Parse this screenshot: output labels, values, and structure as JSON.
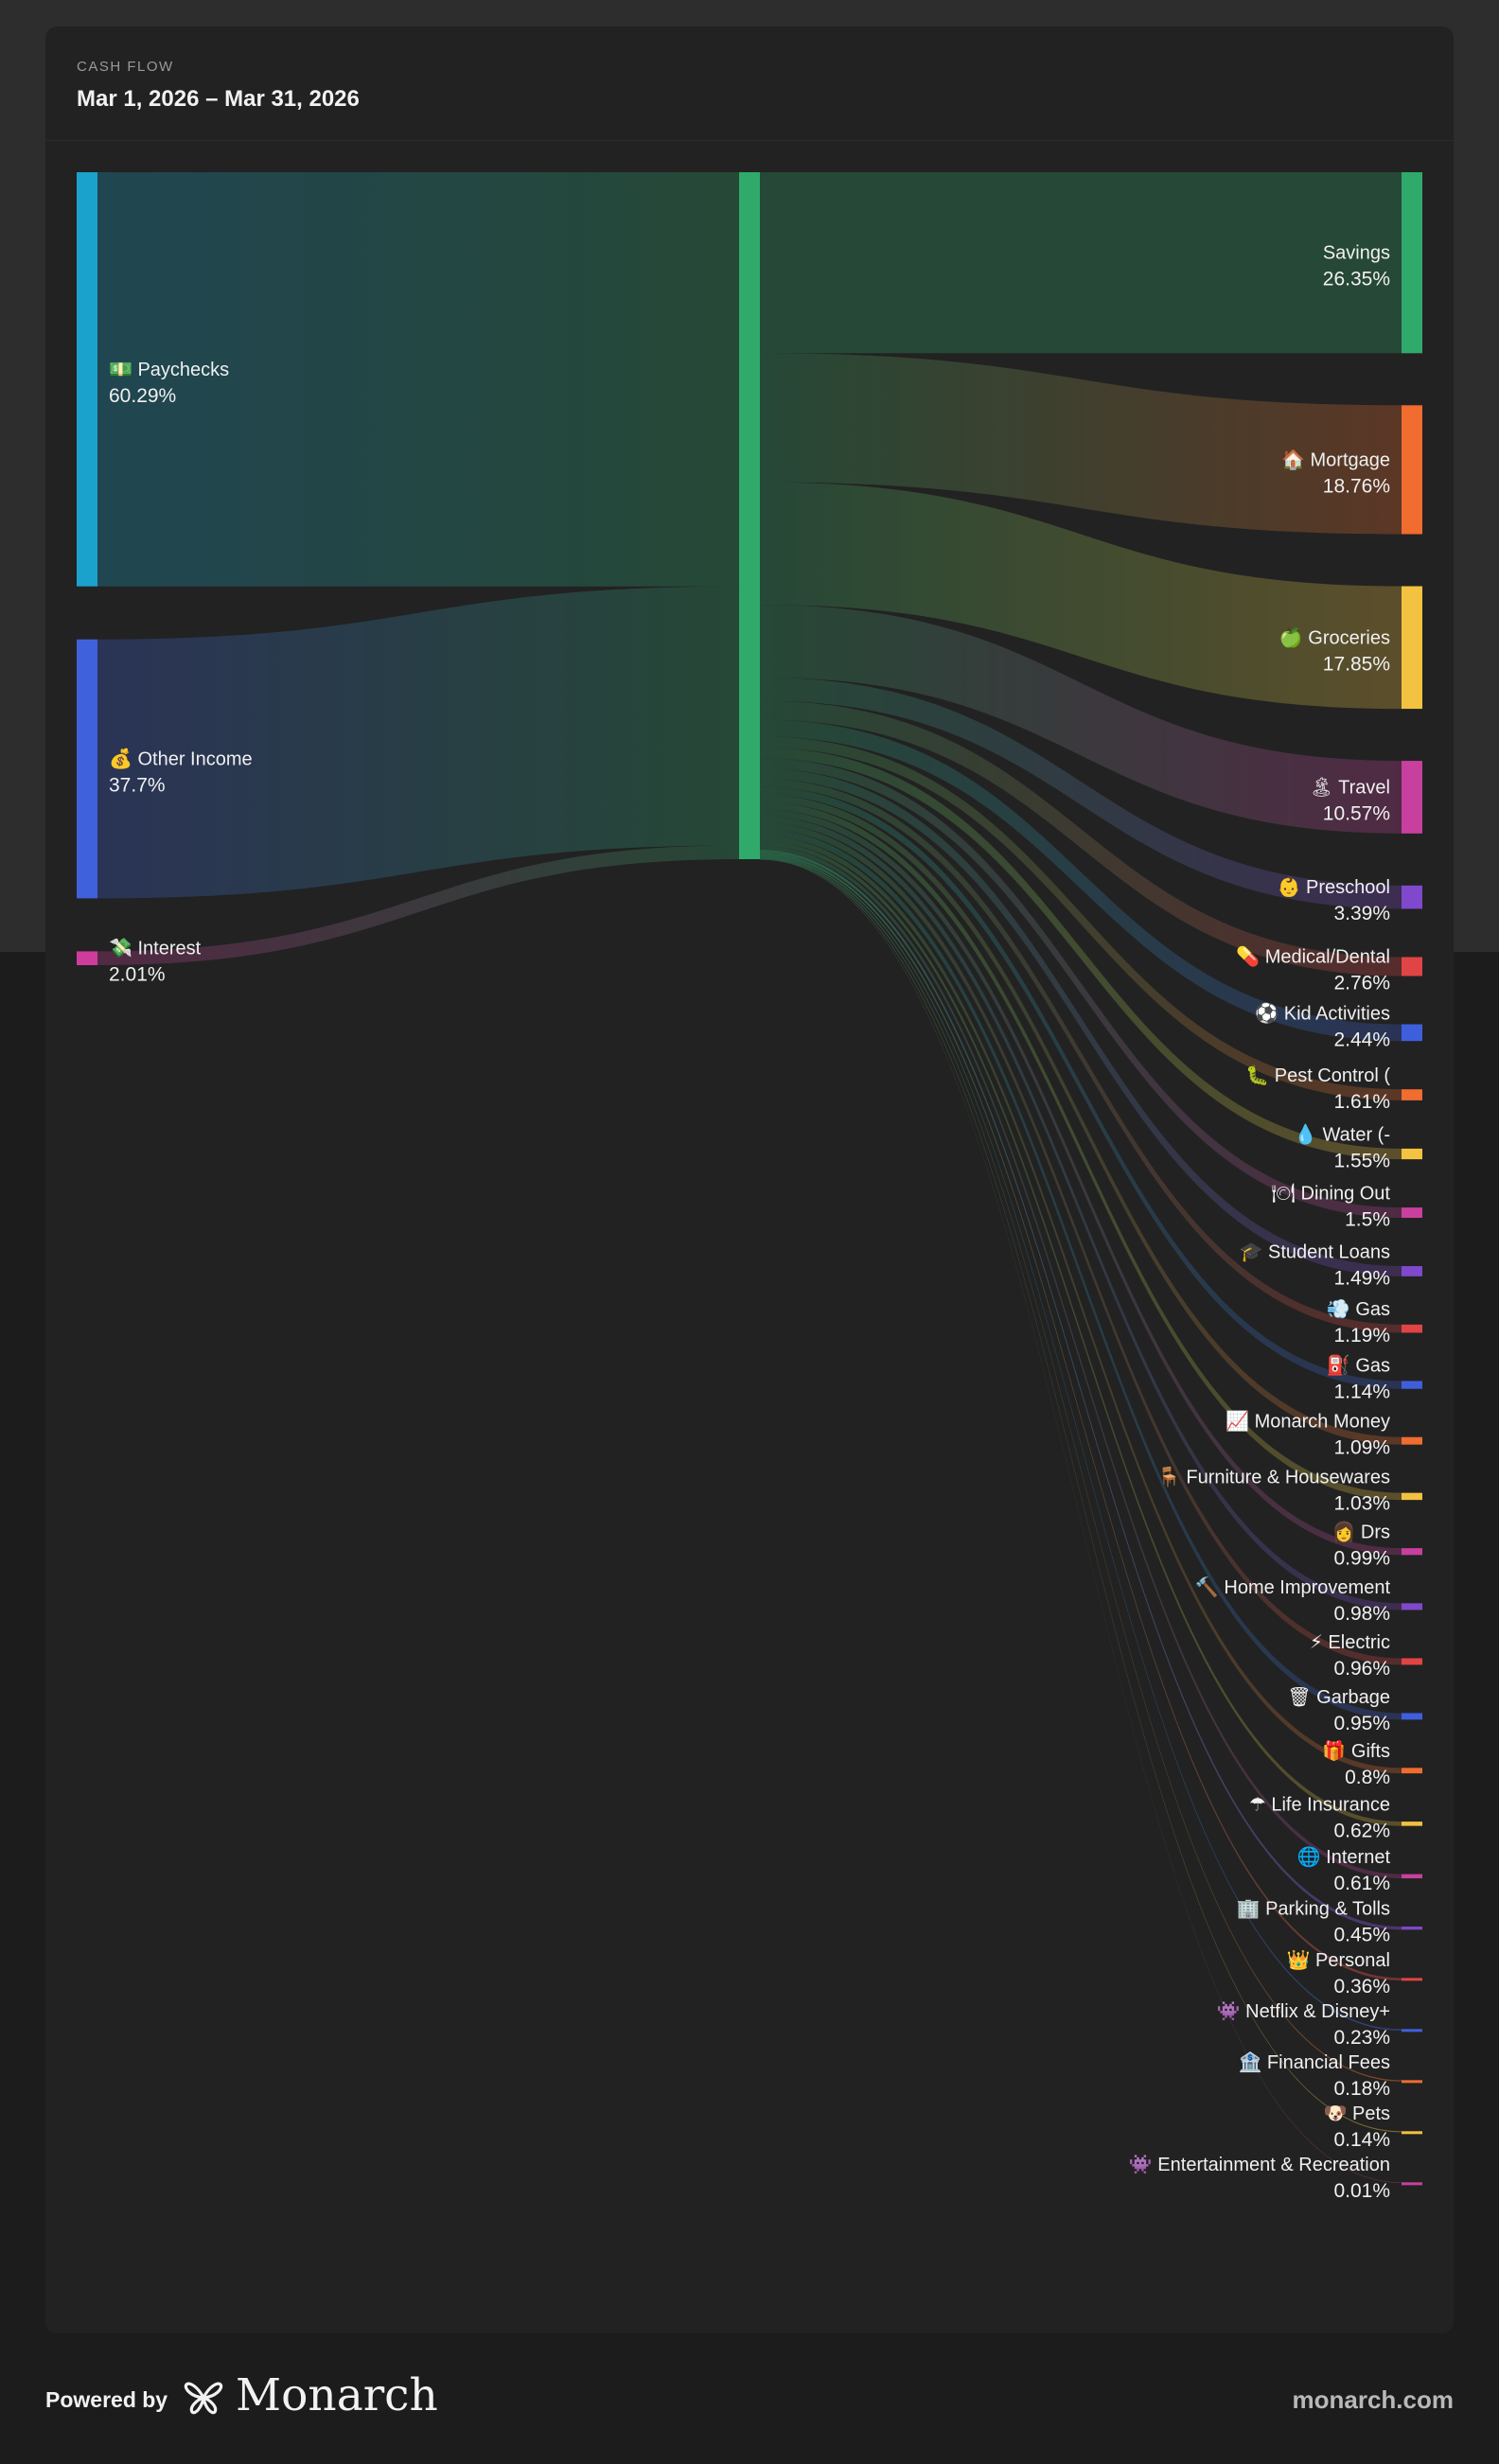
{
  "header": {
    "eyebrow": "CASH FLOW",
    "date_range": "Mar 1, 2026 – Mar 31, 2026"
  },
  "footer": {
    "powered_by": "Powered by",
    "brand": "Monarch",
    "site": "monarch.com"
  },
  "chart_data": {
    "type": "sankey",
    "title": "CASH FLOW",
    "subtitle": "Mar 1, 2026 – Mar 31, 2026",
    "middle_node": {
      "name": "",
      "color": "#2faa6a"
    },
    "sources": [
      {
        "name": "Paychecks",
        "emoji": "💵",
        "pct": "60.29%",
        "value": 60.29,
        "color": "#1ba2cc"
      },
      {
        "name": "Other Income",
        "emoji": "💰",
        "pct": "37.7%",
        "value": 37.7,
        "color": "#4061dc"
      },
      {
        "name": "Interest",
        "emoji": "💸",
        "pct": "2.01%",
        "value": 2.01,
        "color": "#cf3c9c"
      }
    ],
    "targets": [
      {
        "name": "Savings",
        "emoji": "",
        "pct": "26.35%",
        "value": 26.35,
        "color": "#2faa6a"
      },
      {
        "name": "Mortgage",
        "emoji": "🏠",
        "pct": "18.76%",
        "value": 18.76,
        "color": "#f06c2f"
      },
      {
        "name": "Groceries",
        "emoji": "🍏",
        "pct": "17.85%",
        "value": 17.85,
        "color": "#f2c240"
      },
      {
        "name": "Travel",
        "emoji": "🏝",
        "pct": "10.57%",
        "value": 10.57,
        "color": "#c8409e"
      },
      {
        "name": "Preschool",
        "emoji": "👶",
        "pct": "3.39%",
        "value": 3.39,
        "color": "#8048cc"
      },
      {
        "name": "Medical/Dental",
        "emoji": "💊",
        "pct": "2.76%",
        "value": 2.76,
        "color": "#e04444"
      },
      {
        "name": "Kid Activities",
        "emoji": "⚽",
        "pct": "2.44%",
        "value": 2.44,
        "color": "#3e5fdc"
      },
      {
        "name": "Pest Control (",
        "emoji": "🐛",
        "pct": "1.61%",
        "value": 1.61,
        "color": "#f06c2f"
      },
      {
        "name": "Water (-",
        "emoji": "💧",
        "pct": "1.55%",
        "value": 1.55,
        "color": "#f2c240"
      },
      {
        "name": "Dining Out",
        "emoji": "🍽",
        "pct": "1.5%",
        "value": 1.5,
        "color": "#c8409e"
      },
      {
        "name": "Student Loans",
        "emoji": "🎓",
        "pct": "1.49%",
        "value": 1.49,
        "color": "#8048cc"
      },
      {
        "name": "Gas",
        "emoji": "💨",
        "pct": "1.19%",
        "value": 1.19,
        "color": "#e04444"
      },
      {
        "name": "Gas",
        "emoji": "⛽",
        "pct": "1.14%",
        "value": 1.14,
        "color": "#3e5fdc"
      },
      {
        "name": "Monarch Money",
        "emoji": "📈",
        "pct": "1.09%",
        "value": 1.09,
        "color": "#f06c2f"
      },
      {
        "name": "Furniture & Housewares",
        "emoji": "🪑",
        "pct": "1.03%",
        "value": 1.03,
        "color": "#f2c240"
      },
      {
        "name": "Drs",
        "emoji": "👩",
        "pct": "0.99%",
        "value": 0.99,
        "color": "#c8409e"
      },
      {
        "name": "Home Improvement",
        "emoji": "🔨",
        "pct": "0.98%",
        "value": 0.98,
        "color": "#8048cc"
      },
      {
        "name": "Electric",
        "emoji": "⚡",
        "pct": "0.96%",
        "value": 0.96,
        "color": "#e04444"
      },
      {
        "name": "Garbage",
        "emoji": "🗑",
        "pct": "0.95%",
        "value": 0.95,
        "color": "#3e5fdc"
      },
      {
        "name": "Gifts",
        "emoji": "🎁",
        "pct": "0.8%",
        "value": 0.8,
        "color": "#f06c2f"
      },
      {
        "name": "Life Insurance",
        "emoji": "☂",
        "pct": "0.62%",
        "value": 0.62,
        "color": "#f2c240"
      },
      {
        "name": "Internet",
        "emoji": "🌐",
        "pct": "0.61%",
        "value": 0.61,
        "color": "#c8409e"
      },
      {
        "name": "Parking & Tolls",
        "emoji": "🏢",
        "pct": "0.45%",
        "value": 0.45,
        "color": "#8048cc"
      },
      {
        "name": "Personal",
        "emoji": "👑",
        "pct": "0.36%",
        "value": 0.36,
        "color": "#e04444"
      },
      {
        "name": "Netflix & Disney+",
        "emoji": "👾",
        "pct": "0.23%",
        "value": 0.23,
        "color": "#3e5fdc"
      },
      {
        "name": "Financial Fees",
        "emoji": "🏦",
        "pct": "0.18%",
        "value": 0.18,
        "color": "#f06c2f"
      },
      {
        "name": "Pets",
        "emoji": "🐶",
        "pct": "0.14%",
        "value": 0.14,
        "color": "#f2c240"
      },
      {
        "name": "Entertainment & Recreation",
        "emoji": "👾",
        "pct": "0.01%",
        "value": 0.01,
        "color": "#c8409e"
      }
    ]
  }
}
